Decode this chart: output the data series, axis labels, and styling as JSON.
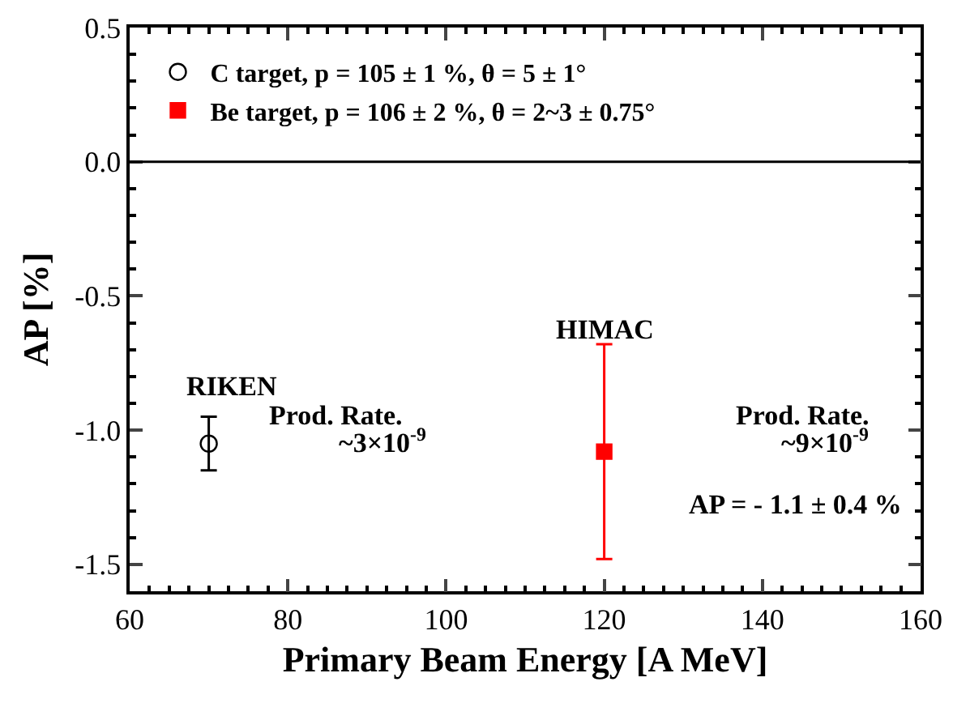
{
  "chart_data": {
    "type": "scatter",
    "xlabel": "Primary Beam Energy [A MeV]",
    "ylabel": "AP [%]",
    "series": [
      {
        "name": "C target, p = 105 ± 1 %, θ = 5 ± 1°",
        "color": "#000000",
        "marker": "circle",
        "x": [
          70
        ],
        "values": [
          -1.05
        ],
        "errors": [
          0.1
        ]
      },
      {
        "name": "Be target, p = 106 ± 2 %, θ = 2~3 ± 0.75°",
        "color": "#ff0000",
        "marker": "square",
        "x": [
          120
        ],
        "values": [
          -1.08
        ],
        "errors": [
          0.4
        ]
      }
    ],
    "xlim": [
      60,
      160
    ],
    "xticks": [
      60,
      80,
      100,
      120,
      140,
      160
    ],
    "ylim": [
      -1.6,
      0.5
    ],
    "yticks": [
      {
        "value": 0.5,
        "label": "0.5"
      },
      {
        "value": 0,
        "label": "0.0"
      },
      {
        "value": -0.5,
        "label": "-0.5"
      },
      {
        "value": -1,
        "label": "-1.0"
      },
      {
        "value": -1.5,
        "label": "-1.5"
      }
    ],
    "ref_lines": [
      {
        "axis": "y",
        "value": 0,
        "color": "#000000"
      }
    ],
    "annotations": [
      "RIKEN",
      "Prod. Rate.",
      "~3×10$^{-9}$",
      "HIMAC",
      "Prod. Rate.",
      "~9×10$^{-9}$",
      "AP = - 1.1 ± 0.4 %"
    ],
    "grid": false,
    "legend": "top left"
  }
}
